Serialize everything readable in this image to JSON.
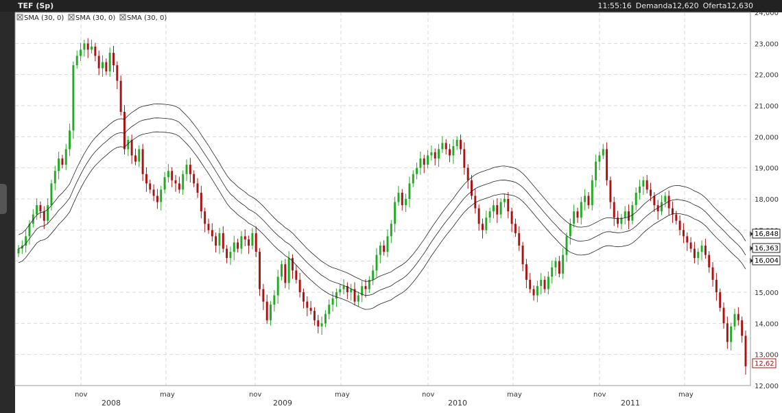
{
  "header": {
    "title": "TEF (Sp)",
    "time": "11:55:16",
    "bid_label": "Demanda",
    "bid": "12,620",
    "ask_label": "Oferta",
    "ask": "12,630"
  },
  "indicators": [
    "SMA (30, 0)",
    "SMA (30, 0)",
    "SMA (30, 0)"
  ],
  "last_price_label": "12,62",
  "band_labels": [
    "16,848",
    "16,363",
    "16,004"
  ],
  "colors": {
    "up": "#22aa22",
    "down": "#aa1111",
    "background": "#ffffff",
    "grid": "#d9d9d9"
  },
  "chart_data": {
    "type": "candlestick",
    "ylim": [
      12.0,
      24.0
    ],
    "y_ticks": [
      "12,000",
      "13,000",
      "14,000",
      "15,000",
      "16,000",
      "17,000",
      "18,000",
      "19,000",
      "20,000",
      "21,000",
      "22,000",
      "23,000",
      "24,000"
    ],
    "x_months": [
      "nov",
      "may",
      "nov",
      "may",
      "nov",
      "may",
      "nov",
      "may"
    ],
    "x_years": [
      "2008",
      "2009",
      "2010",
      "2011"
    ],
    "closes": [
      16.4,
      16.5,
      16.8,
      17.2,
      17.5,
      17.8,
      17.6,
      17.3,
      17.8,
      18.5,
      18.9,
      19.3,
      19.1,
      19.6,
      20.2,
      22.3,
      22.6,
      22.8,
      23.0,
      22.8,
      22.9,
      22.6,
      22.2,
      22.4,
      22.1,
      22.7,
      22.3,
      21.8,
      20.8,
      19.6,
      19.9,
      19.4,
      19.2,
      19.6,
      18.8,
      18.5,
      18.3,
      18.1,
      17.9,
      18.3,
      18.7,
      18.9,
      18.6,
      18.5,
      18.3,
      18.8,
      19.1,
      18.8,
      18.5,
      18.2,
      17.6,
      17.2,
      17.0,
      16.8,
      16.5,
      16.9,
      16.4,
      16.1,
      16.3,
      16.6,
      16.4,
      16.8,
      16.7,
      16.5,
      16.9,
      16.3,
      15.1,
      14.7,
      14.1,
      14.6,
      14.9,
      15.5,
      15.9,
      15.3,
      16.1,
      15.7,
      15.4,
      15.0,
      14.7,
      14.5,
      14.4,
      14.1,
      13.9,
      14.0,
      14.3,
      14.6,
      14.8,
      15.0,
      15.1,
      15.2,
      15.0,
      15.1,
      14.7,
      14.9,
      15.2,
      15.1,
      15.4,
      15.7,
      16.2,
      16.5,
      16.3,
      16.8,
      17.2,
      17.9,
      18.2,
      17.8,
      18.0,
      18.5,
      18.8,
      19.0,
      19.3,
      19.1,
      19.4,
      19.5,
      19.3,
      19.6,
      19.8,
      19.6,
      19.4,
      19.7,
      19.9,
      19.6,
      19.0,
      18.6,
      18.1,
      17.7,
      17.2,
      17.0,
      17.4,
      17.6,
      17.8,
      17.5,
      17.9,
      18.0,
      17.6,
      17.2,
      16.9,
      16.5,
      15.9,
      15.4,
      15.1,
      14.9,
      15.2,
      15.4,
      15.1,
      15.5,
      15.8,
      16.0,
      15.6,
      16.2,
      16.8,
      17.2,
      17.6,
      17.4,
      17.9,
      18.1,
      17.8,
      18.6,
      19.2,
      19.4,
      19.6,
      18.6,
      17.9,
      17.4,
      17.2,
      17.4,
      17.6,
      17.3,
      17.8,
      18.2,
      18.4,
      18.6,
      18.3,
      18.1,
      17.8,
      17.6,
      17.9,
      18.1,
      17.7,
      17.5,
      17.3,
      17.0,
      16.8,
      16.6,
      16.4,
      16.1,
      16.3,
      16.5,
      16.2,
      15.8,
      15.4,
      15.0,
      14.5,
      14.0,
      13.4,
      13.9,
      14.3,
      14.1,
      13.6,
      12.62
    ]
  }
}
